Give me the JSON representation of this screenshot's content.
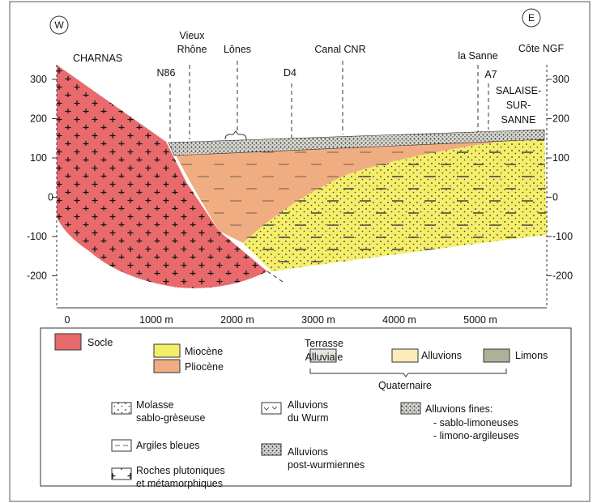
{
  "section": {
    "west": "W",
    "east": "E",
    "places": [
      "CHARNAS",
      "Vieux",
      "Rhône",
      "Lônes",
      "N86",
      "D4",
      "Canal CNR",
      "la Sanne",
      "A7",
      "SALAISE-",
      "SUR-",
      "SANNE"
    ],
    "elevation_label": "Côte NGF",
    "elevation_ticks": [
      "300",
      "200",
      "100",
      "0",
      "-100",
      "-200"
    ],
    "distance_ticks": [
      "0",
      "1000 m",
      "2000 m",
      "3000 m",
      "4000 m",
      "5000 m"
    ]
  },
  "legend": {
    "socle": "Socle",
    "miocene": "Miocène",
    "pliocene": "Pliocène",
    "terrasse": [
      "Terrasse",
      "Alluviale"
    ],
    "alluvions": "Alluvions",
    "limons": "Limons",
    "quaternaire": "Quaternaire",
    "molasse": [
      "Molasse",
      "sablo-grèseuse"
    ],
    "wurm": [
      "Alluvions",
      "du Wurm"
    ],
    "fines": [
      "Alluvions fines:",
      "- sablo-limoneuses",
      "- limono-argileuses"
    ],
    "argiles": "Argiles bleues",
    "post": [
      "Alluvions",
      "post-wurmiennes"
    ],
    "roches": [
      "Roches plutoniques",
      "et métamorphiques"
    ]
  }
}
